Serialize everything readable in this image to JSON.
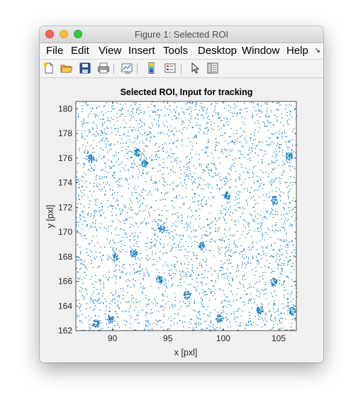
{
  "window": {
    "title": "Figure 1: Selected ROI"
  },
  "menu": {
    "items": [
      "File",
      "Edit",
      "View",
      "Insert",
      "Tools",
      "Desktop",
      "Window",
      "Help"
    ],
    "more_glyph": "↘"
  },
  "toolbar": {
    "tools": [
      "new-figure-icon",
      "open-file-icon",
      "save-icon",
      "print-icon",
      "link-plot-icon",
      "colorbar-icon",
      "legend-icon",
      "pointer-icon",
      "property-inspector-icon"
    ]
  },
  "colors": {
    "accent": "#0072bd"
  },
  "chart_data": {
    "type": "scatter",
    "title": "Selected ROI, Input for tracking",
    "xlabel": "x [pxl]",
    "ylabel": "y [pxl]",
    "xlim": [
      86.7,
      106.6
    ],
    "ylim": [
      162,
      180.6
    ],
    "xticks": [
      90,
      95,
      100,
      105
    ],
    "yticks": [
      162,
      164,
      166,
      168,
      170,
      172,
      174,
      176,
      178,
      180
    ],
    "grid": false,
    "marker_color": "#0072bd",
    "clusters": [
      {
        "x": 88.5,
        "y": 162.6
      },
      {
        "x": 89.8,
        "y": 162.9
      },
      {
        "x": 90.2,
        "y": 168.0
      },
      {
        "x": 91.9,
        "y": 168.3
      },
      {
        "x": 92.9,
        "y": 175.6
      },
      {
        "x": 92.2,
        "y": 176.5
      },
      {
        "x": 94.4,
        "y": 170.3
      },
      {
        "x": 94.2,
        "y": 166.2
      },
      {
        "x": 98.0,
        "y": 168.9
      },
      {
        "x": 99.6,
        "y": 163.0
      },
      {
        "x": 103.3,
        "y": 163.7
      },
      {
        "x": 106.2,
        "y": 163.6
      },
      {
        "x": 104.5,
        "y": 166.0
      },
      {
        "x": 104.6,
        "y": 172.6
      },
      {
        "x": 100.3,
        "y": 173.0
      },
      {
        "x": 88.0,
        "y": 176.0
      },
      {
        "x": 105.9,
        "y": 176.2
      },
      {
        "x": 96.7,
        "y": 164.9
      }
    ]
  }
}
